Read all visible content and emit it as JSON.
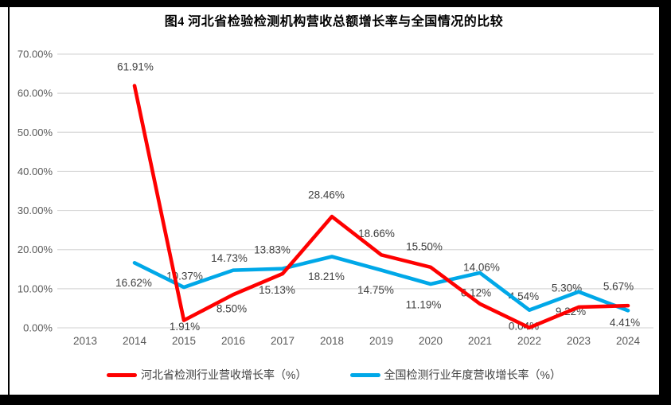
{
  "chart_data": {
    "type": "line",
    "title": "图4  河北省检验检测机构营收总额增长率与全国情况的比较",
    "categories": [
      "2013",
      "2014",
      "2015",
      "2016",
      "2017",
      "2018",
      "2019",
      "2020",
      "2021",
      "2022",
      "2023",
      "2024"
    ],
    "series": [
      {
        "name": "河北省检测行业营收增长率（%）",
        "color": "#FE0000",
        "values": [
          null,
          61.91,
          1.91,
          8.5,
          13.83,
          28.46,
          18.66,
          15.5,
          6.12,
          0.04,
          5.3,
          5.67
        ],
        "labels": [
          null,
          "61.91%",
          "1.91%",
          "8.50%",
          "13.83%",
          "28.46%",
          "18.66%",
          "15.50%",
          "6.12%",
          "0.04%",
          "5.30%",
          "5.67%"
        ],
        "label_offsets": [
          null,
          [
            1,
            -24
          ],
          [
            1,
            8
          ],
          [
            -2,
            18
          ],
          [
            -13,
            -30
          ],
          [
            -7,
            -27
          ],
          [
            -6,
            -27
          ],
          [
            -8,
            -26
          ],
          [
            -5,
            -14
          ],
          [
            -7,
            -2
          ],
          [
            -15,
            -24
          ],
          [
            -12,
            -24
          ]
        ]
      },
      {
        "name": "全国检测行业年度营收增长率（%）",
        "color": "#00A8E8",
        "values": [
          null,
          16.62,
          10.37,
          14.73,
          15.13,
          18.21,
          14.75,
          11.19,
          14.06,
          4.54,
          9.22,
          4.41
        ],
        "labels": [
          null,
          "16.62%",
          "10.37%",
          "14.73%",
          "15.13%",
          "18.21%",
          "14.75%",
          "11.19%",
          "14.06%",
          "4.54%",
          "9.22%",
          "4.41%"
        ],
        "label_offsets": [
          null,
          [
            -1,
            25
          ],
          [
            1,
            -14
          ],
          [
            -5,
            -15
          ],
          [
            -7,
            27
          ],
          [
            -7,
            25
          ],
          [
            -7,
            25
          ],
          [
            -9,
            26
          ],
          [
            2,
            -7
          ],
          [
            -7,
            -17
          ],
          [
            -10,
            25
          ],
          [
            -4,
            15
          ]
        ]
      }
    ],
    "y_axis": {
      "min": 0,
      "max": 70,
      "step": 10,
      "tick_labels": [
        "70.00%",
        "60.00%",
        "50.00%",
        "40.00%",
        "30.00%",
        "20.00%",
        "10.00%",
        "0.00%"
      ]
    },
    "grid": true,
    "legend_position": "bottom"
  }
}
